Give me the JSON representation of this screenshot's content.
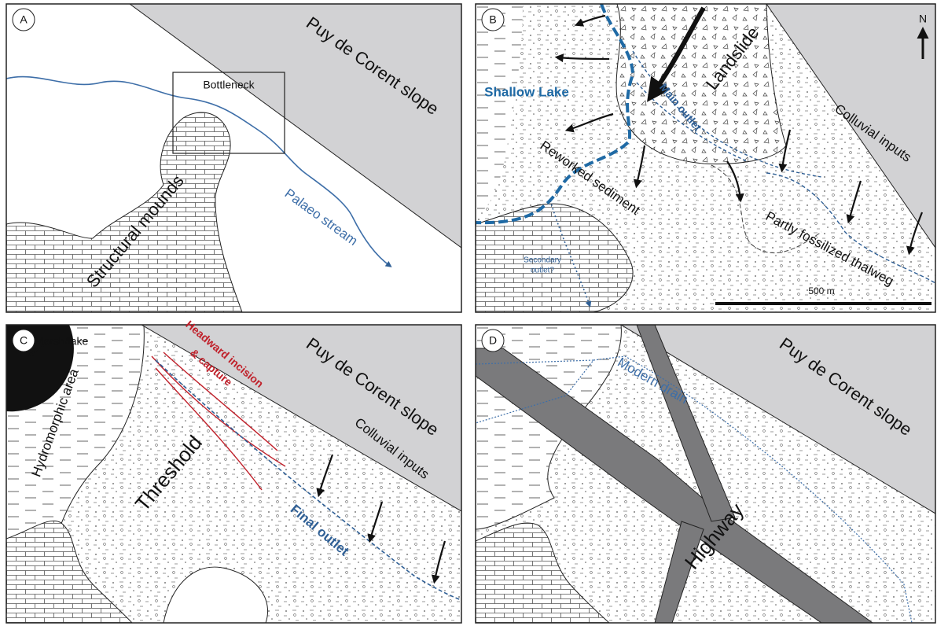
{
  "panel_a": {
    "label": "A",
    "slope": "Puy de Corent slope",
    "bottleneck": "Bottleneck",
    "mounds": "Structural mounds",
    "stream": "Palaeo stream"
  },
  "panel_b": {
    "label": "B",
    "north": "N",
    "landslide": "Landslide",
    "lake": "Shallow Lake",
    "main_outlet": "Main outlet",
    "reworked": "Reworked sediment",
    "colluvial": "Colluvial inputs",
    "thalweg": "Partly fossilized thalweg",
    "secondary": [
      "Secondary",
      "outlet?"
    ],
    "scale": "500 m"
  },
  "panel_c": {
    "label": "C",
    "marsh": "Marsh/lake",
    "hydromorphic": "Hydromorphic area",
    "incision": [
      "Headward incision",
      "& capture"
    ],
    "slope": "Puy de Corent slope",
    "threshold": "Threshold",
    "colluvial": "Colluvial inputs",
    "final_outlet": "Final outlet"
  },
  "panel_d": {
    "label": "D",
    "slope": "Puy de Corent slope",
    "drain": "Modern drain",
    "highway": "Highway"
  }
}
